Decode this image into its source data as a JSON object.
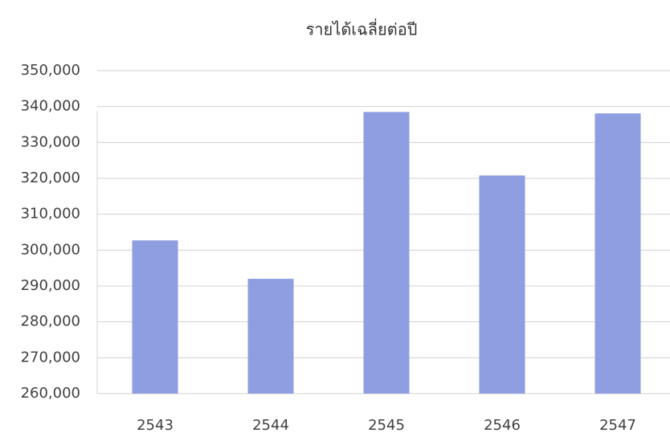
{
  "chart_data": {
    "type": "bar",
    "title": "รายได้เฉลี่ยต่อปี",
    "categories": [
      "2543",
      "2544",
      "2545",
      "2546",
      "2547"
    ],
    "values": [
      302700,
      292000,
      338500,
      320800,
      338100
    ],
    "color": "#8e9ee0",
    "ylim": [
      260000,
      350000
    ],
    "yticks": [
      {
        "value": 260000,
        "label": "260,000"
      },
      {
        "value": 270000,
        "label": "270,000"
      },
      {
        "value": 280000,
        "label": "280,000"
      },
      {
        "value": 290000,
        "label": "290,000"
      },
      {
        "value": 300000,
        "label": "300,000"
      },
      {
        "value": 310000,
        "label": "310,000"
      },
      {
        "value": 320000,
        "label": "320,000"
      },
      {
        "value": 330000,
        "label": "330,000"
      },
      {
        "value": 340000,
        "label": "340,000"
      },
      {
        "value": 350000,
        "label": "350,000"
      }
    ],
    "grid": true
  }
}
